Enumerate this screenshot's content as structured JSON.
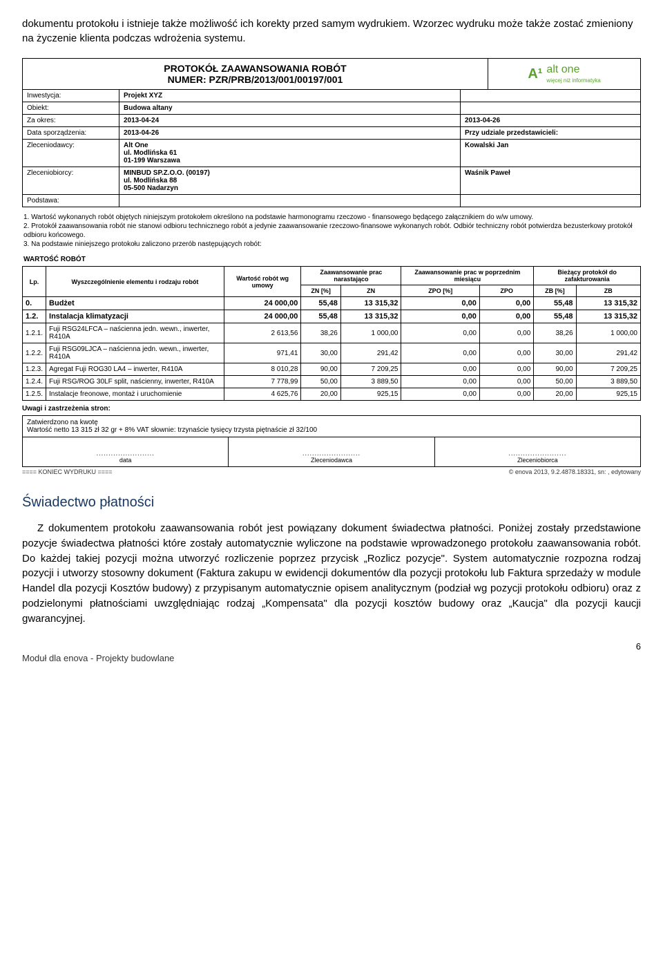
{
  "intro": "dokumentu protokołu i istnieje także możliwość ich korekty przed samym wydrukiem. Wzorzec wydruku może także zostać zmieniony na życzenie klienta podczas wdrożenia systemu.",
  "proto": {
    "title_l1": "PROTOKÓŁ ZAAWANSOWANIA ROBÓT",
    "title_l2": "NUMER: PZR/PRB/2013/001/00197/001",
    "logo_mark": "A¹",
    "logo_text": "alt one",
    "logo_sub": "więcej niż informatyka",
    "rows": [
      {
        "label": "Inwestycja:",
        "mid": "Projekt XYZ",
        "right": ""
      },
      {
        "label": "Obiekt:",
        "mid": "Budowa altany",
        "right": ""
      },
      {
        "label": "Za okres:",
        "mid": "2013-04-24",
        "right": "2013-04-26"
      },
      {
        "label": "Data sporządzenia:",
        "mid": "2013-04-26",
        "right": "Przy udziale przedstawicieli:"
      },
      {
        "label": "Zleceniodawcy:",
        "mid": "Alt One\nul. Modlińska 61\n01-199 Warszawa",
        "right": "Kowalski Jan"
      },
      {
        "label": "Zleceniobiorcy:",
        "mid": "MINBUD SP.Z.O.O. (00197)\nul. Modlińska 88\n05-500 Nadarzyn",
        "right": "Waśnik Paweł"
      },
      {
        "label": "Podstawa:",
        "mid": "",
        "right": ""
      }
    ],
    "notes": "1. Wartość wykonanych robót objętych niniejszym protokołem określono na podstawie harmonogramu rzeczowo - finansowego będącego załącznikiem do w/w umowy.\n2. Protokół zaawansowania robót nie stanowi odbioru technicznego robót a jedynie zaawansowanie rzeczowo-finansowe wykonanych robót. Odbiór techniczny robót potwierdza bezusterkowy protokół odbioru końcowego.\n3. Na podstawie niniejszego protokołu zaliczono  przerób następujących robót:",
    "wartosc_label": "WARTOŚĆ ROBÓT",
    "headers": {
      "lp": "Lp.",
      "desc": "Wyszczególnienie elementu i rodzaju robót",
      "wart": "Wartość robót wg umowy",
      "zaaw": "Zaawansowanie prac narastająco",
      "zaaw_prev": "Zaawansowanie prac w poprzednim miesiącu",
      "biez": "Bieżący protokół do zafakturowania",
      "zn_p": "ZN [%]",
      "zn": "ZN",
      "zpo_p": "ZPO [%]",
      "zpo": "ZPO",
      "zb_p": "ZB [%]",
      "zb": "ZB"
    },
    "datarows": [
      {
        "bold": true,
        "lp": "0.",
        "desc": "Budżet",
        "w": "24 000,00",
        "znp": "55,48",
        "zn": "13 315,32",
        "zpop": "0,00",
        "zpo": "0,00",
        "zbp": "55,48",
        "zb": "13 315,32"
      },
      {
        "bold": true,
        "lp": "1.2.",
        "desc": "Instalacja klimatyzacji",
        "w": "24 000,00",
        "znp": "55,48",
        "zn": "13 315,32",
        "zpop": "0,00",
        "zpo": "0,00",
        "zbp": "55,48",
        "zb": "13 315,32"
      },
      {
        "bold": false,
        "lp": "1.2.1.",
        "desc": "Fuji RSG24LFCA – naścienna jedn. wewn., inwerter, R410A",
        "w": "2 613,56",
        "znp": "38,26",
        "zn": "1 000,00",
        "zpop": "0,00",
        "zpo": "0,00",
        "zbp": "38,26",
        "zb": "1 000,00"
      },
      {
        "bold": false,
        "lp": "1.2.2.",
        "desc": "Fuji RSG09LJCA – naścienna jedn. wewn., inwerter, R410A",
        "w": "971,41",
        "znp": "30,00",
        "zn": "291,42",
        "zpop": "0,00",
        "zpo": "0,00",
        "zbp": "30,00",
        "zb": "291,42"
      },
      {
        "bold": false,
        "lp": "1.2.3.",
        "desc": "Agregat Fuji ROG30 LA4 – inwerter, R410A",
        "w": "8 010,28",
        "znp": "90,00",
        "zn": "7 209,25",
        "zpop": "0,00",
        "zpo": "0,00",
        "zbp": "90,00",
        "zb": "7 209,25"
      },
      {
        "bold": false,
        "lp": "1.2.4.",
        "desc": "Fuji RSG/ROG 30LF split, naścienny, inwerter, R410A",
        "w": "7 778,99",
        "znp": "50,00",
        "zn": "3 889,50",
        "zpop": "0,00",
        "zpo": "0,00",
        "zbp": "50,00",
        "zb": "3 889,50"
      },
      {
        "bold": false,
        "lp": "1.2.5.",
        "desc": "Instalacje freonowe, montaż i uruchomienie",
        "w": "4 625,76",
        "znp": "20,00",
        "zn": "925,15",
        "zpop": "0,00",
        "zpo": "0,00",
        "zbp": "20,00",
        "zb": "925,15"
      }
    ],
    "remarks": "Uwagi i zastrzeżenia stron:",
    "approval_l1": "Zatwierdzono na kwotę",
    "approval_l2": "Wartość netto 13 315 zł 32 gr  + 8% VAT słownie: trzynaście tysięcy trzysta piętnaście zł 32/100",
    "sig": [
      "data",
      "Zleceniodawca",
      "Zleceniobiorca"
    ],
    "footer_left": "==== KONIEC WYDRUKU ====",
    "footer_right": "© enova 2013, 9.2.4878.18331, sn: , edytowany"
  },
  "heading": "Świadectwo płatności",
  "body": "Z dokumentem protokołu zaawansowania robót jest powiązany dokument świadectwa płatności. Poniżej zostały przedstawione pozycje świadectwa płatności które zostały automatycznie wyliczone na podstawie wprowadzonego protokołu zaawansowania robót. Do każdej takiej pozycji można utworzyć rozliczenie poprzez przycisk „Rozlicz pozycje\". System automatycznie rozpozna rodzaj pozycji i utworzy stosowny dokument (Faktura zakupu w ewidencji dokumentów dla pozycji protokołu lub Faktura sprzedaży w module Handel dla pozycji Kosztów budowy) z przypisanym automatycznie opisem analitycznym (podział wg pozycji protokołu odbioru) oraz z podzielonymi płatnościami uwzględniając rodzaj „Kompensata\" dla pozycji kosztów budowy oraz „Kaucja\" dla pozycji kaucji gwarancyjnej.",
  "page_num": "6",
  "doc_footer": "Moduł dla enova - Projekty budowlane"
}
